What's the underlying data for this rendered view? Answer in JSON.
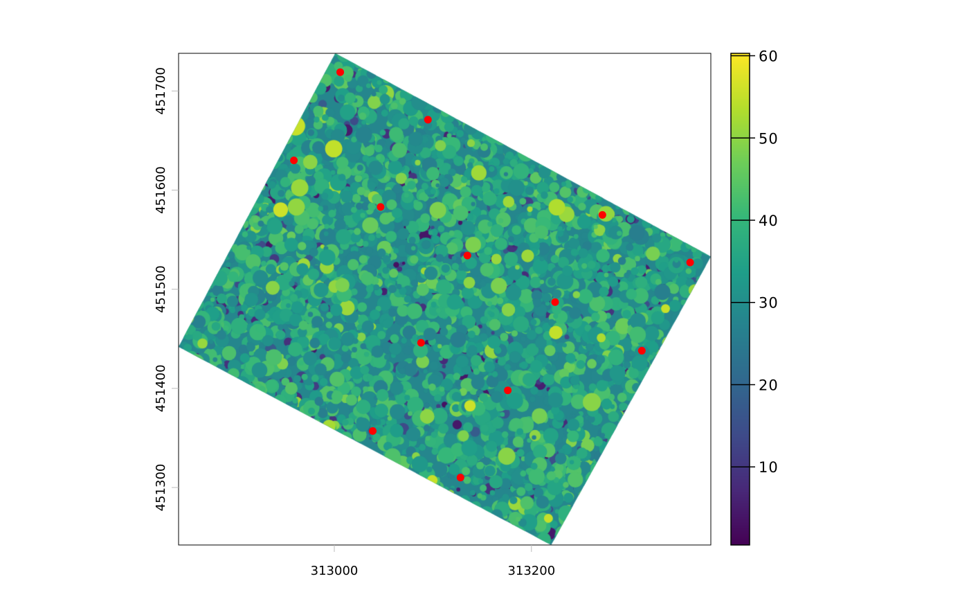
{
  "chart_data": {
    "type": "raster",
    "title": "",
    "xlabel": "",
    "ylabel": "",
    "xlim": [
      312842,
      313382
    ],
    "ylim": [
      451242,
      451738
    ],
    "x_ticks": [
      313000,
      313200
    ],
    "y_ticks": [
      451300,
      451400,
      451500,
      451600,
      451700
    ],
    "x_tick_labels": [
      "313000",
      "313200"
    ],
    "y_tick_labels": [
      "451300",
      "451400",
      "451500",
      "451600",
      "451700"
    ],
    "raster_corners": [
      [
        313001,
        451738
      ],
      [
        313382,
        451533
      ],
      [
        313220,
        451242
      ],
      [
        312842,
        451442
      ]
    ],
    "colorbar": {
      "palette": "viridis",
      "range": [
        0.5,
        60.3
      ],
      "ticks": [
        10,
        20,
        30,
        40,
        50,
        60
      ],
      "tick_labels": [
        "10",
        "20",
        "30",
        "40",
        "50",
        "60"
      ]
    },
    "points": {
      "color": "#ff0000",
      "x": [
        313006,
        313095,
        312959,
        313047,
        313272,
        313135,
        313361,
        313224,
        313088,
        313312,
        313176,
        313039,
        313128
      ],
      "y": [
        451719,
        451671,
        451630,
        451583,
        451575,
        451534,
        451527,
        451487,
        451446,
        451438,
        451398,
        451357,
        451310
      ]
    },
    "grid": false
  }
}
